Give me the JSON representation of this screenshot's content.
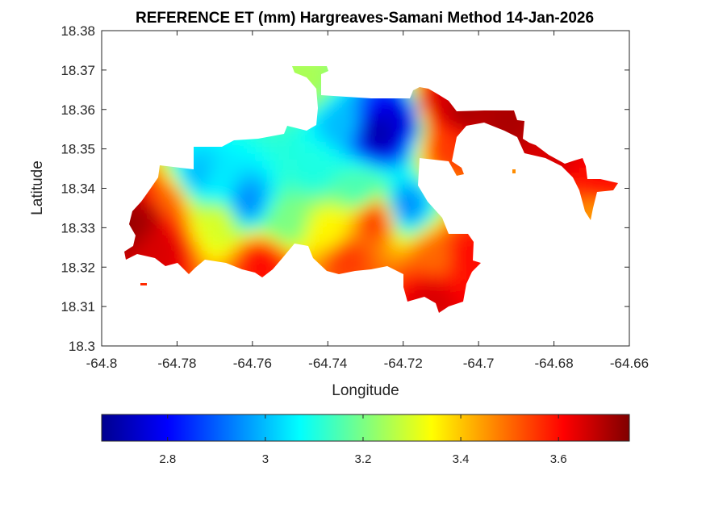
{
  "chart_data": {
    "type": "heatmap",
    "title": "REFERENCE ET (mm) Hargreaves-Samani Method  14-Jan-2026",
    "xlabel": "Longitude",
    "ylabel": "Latitude",
    "xlim": [
      -64.8,
      -64.66
    ],
    "ylim": [
      18.3,
      18.38
    ],
    "xticks": [
      -64.8,
      -64.78,
      -64.76,
      -64.74,
      -64.72,
      -64.7,
      -64.68,
      -64.66
    ],
    "yticks": [
      18.3,
      18.31,
      18.32,
      18.33,
      18.34,
      18.35,
      18.36,
      18.37,
      18.38
    ],
    "xtick_labels": [
      "-64.8",
      "-64.78",
      "-64.76",
      "-64.74",
      "-64.72",
      "-64.7",
      "-64.68",
      "-64.66"
    ],
    "ytick_labels": [
      "18.3",
      "18.31",
      "18.32",
      "18.33",
      "18.34",
      "18.35",
      "18.36",
      "18.37",
      "18.38"
    ],
    "colormap": "jet",
    "colorbar": {
      "location": "bottom",
      "clim": [
        2.665,
        3.745
      ],
      "ticks": [
        2.8,
        3.0,
        3.2,
        3.4,
        3.6
      ],
      "tick_labels": [
        "2.8",
        "3",
        "3.2",
        "3.4",
        "3.6"
      ]
    },
    "grid": false,
    "values_approx": [
      {
        "lon": -64.727,
        "lat": 18.3545,
        "value": 2.7
      },
      {
        "lon": -64.722,
        "lat": 18.358,
        "value": 2.75
      },
      {
        "lon": -64.737,
        "lat": 18.357,
        "value": 3.0
      },
      {
        "lon": -64.746,
        "lat": 18.368,
        "value": 3.25
      },
      {
        "lon": -64.762,
        "lat": 18.337,
        "value": 2.95
      },
      {
        "lon": -64.77,
        "lat": 18.342,
        "value": 3.05
      },
      {
        "lon": -64.775,
        "lat": 18.344,
        "value": 3.0
      },
      {
        "lon": -64.744,
        "lat": 18.346,
        "value": 3.1
      },
      {
        "lon": -64.732,
        "lat": 18.34,
        "value": 3.15
      },
      {
        "lon": -64.72,
        "lat": 18.336,
        "value": 2.95
      },
      {
        "lon": -64.752,
        "lat": 18.332,
        "value": 3.2
      },
      {
        "lon": -64.77,
        "lat": 18.332,
        "value": 3.3
      },
      {
        "lon": -64.74,
        "lat": 18.329,
        "value": 3.35
      },
      {
        "lon": -64.728,
        "lat": 18.333,
        "value": 3.55
      },
      {
        "lon": -64.758,
        "lat": 18.322,
        "value": 3.6
      },
      {
        "lon": -64.736,
        "lat": 18.323,
        "value": 3.55
      },
      {
        "lon": -64.712,
        "lat": 18.323,
        "value": 3.5
      },
      {
        "lon": -64.704,
        "lat": 18.323,
        "value": 3.6
      },
      {
        "lon": -64.713,
        "lat": 18.313,
        "value": 3.65
      },
      {
        "lon": -64.784,
        "lat": 18.337,
        "value": 3.5
      },
      {
        "lon": -64.788,
        "lat": 18.334,
        "value": 3.7
      },
      {
        "lon": -64.793,
        "lat": 18.332,
        "value": 3.72
      },
      {
        "lon": -64.785,
        "lat": 18.325,
        "value": 3.65
      },
      {
        "lon": -64.711,
        "lat": 18.362,
        "value": 3.65
      },
      {
        "lon": -64.705,
        "lat": 18.36,
        "value": 3.7
      },
      {
        "lon": -64.709,
        "lat": 18.351,
        "value": 3.55
      },
      {
        "lon": -64.693,
        "lat": 18.358,
        "value": 3.7
      },
      {
        "lon": -64.68,
        "lat": 18.35,
        "value": 3.65
      },
      {
        "lon": -64.668,
        "lat": 18.342,
        "value": 3.6
      },
      {
        "lon": -64.669,
        "lat": 18.334,
        "value": 3.45
      }
    ]
  }
}
